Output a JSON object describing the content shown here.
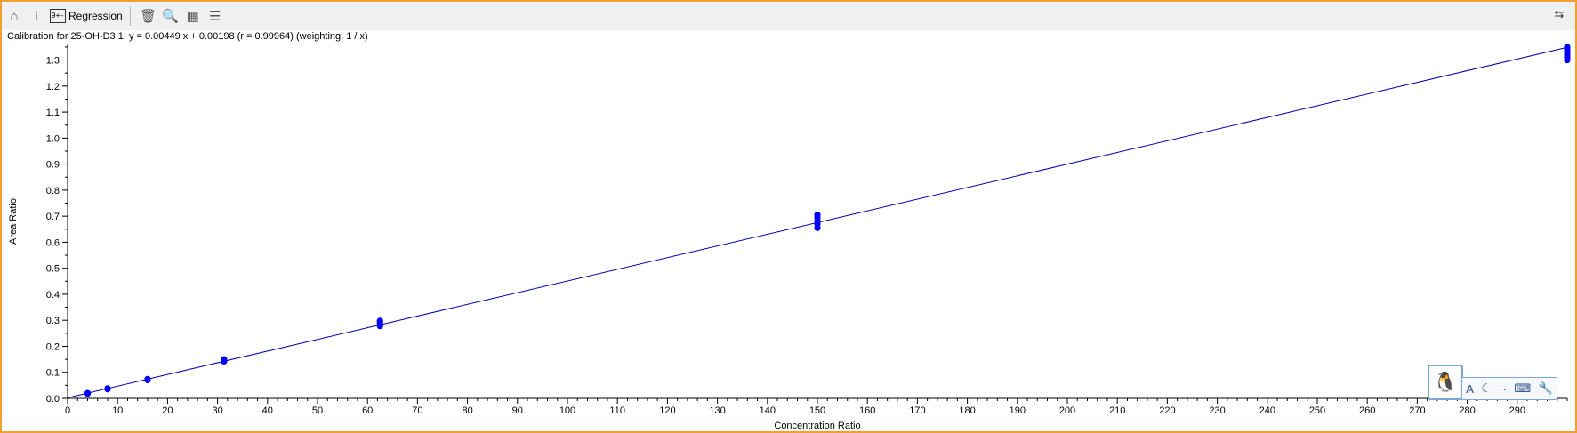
{
  "window": {
    "toolbar": {
      "home_icon": "home-icon",
      "pin_icon": "pin-icon",
      "regression_label": "Regression",
      "regression_glyph": "9+-",
      "delete_icon": "trash-icon",
      "zoom_icon": "magnifier-icon",
      "table_icon": "table-icon",
      "list_icon": "list-icon",
      "dock_icon": "dock-icon"
    }
  },
  "ime": {
    "avatar_icon": "penguin-icon",
    "font_label": "A",
    "moon_icon": "moon-icon",
    "dots_label": "··",
    "keyboard_icon": "keyboard-icon",
    "wrench_icon": "wrench-icon"
  },
  "chart_data": {
    "type": "scatter",
    "title": "Calibration for 25-OH-D3 1: y = 0.00449 x + 0.00198 (r = 0.99964)  (weighting: 1 / x)",
    "xlabel": "Concentration Ratio",
    "ylabel": "Area Ratio",
    "xlim": [
      0,
      300
    ],
    "ylim": [
      0,
      1.36
    ],
    "x_ticks": [
      0,
      10,
      20,
      30,
      40,
      50,
      60,
      70,
      80,
      90,
      100,
      110,
      120,
      130,
      140,
      150,
      160,
      170,
      180,
      190,
      200,
      210,
      220,
      230,
      240,
      250,
      260,
      270,
      280,
      290
    ],
    "y_ticks": [
      0.0,
      0.1,
      0.2,
      0.3,
      0.4,
      0.5,
      0.6,
      0.7,
      0.8,
      0.9,
      1.0,
      1.1,
      1.2,
      1.3
    ],
    "grid": false,
    "colors": {
      "points": "#0000ff",
      "line": "#0000aa",
      "frame": "#f0a030"
    },
    "regression": {
      "slope": 0.00449,
      "intercept": 0.00198,
      "x_range": [
        0,
        300
      ]
    },
    "points": [
      {
        "x": 4,
        "y": 0.018
      },
      {
        "x": 4,
        "y": 0.02
      },
      {
        "x": 8,
        "y": 0.035
      },
      {
        "x": 8,
        "y": 0.038
      },
      {
        "x": 16,
        "y": 0.07
      },
      {
        "x": 16,
        "y": 0.074
      },
      {
        "x": 31.3,
        "y": 0.142
      },
      {
        "x": 31.3,
        "y": 0.146
      },
      {
        "x": 31.3,
        "y": 0.15
      },
      {
        "x": 62.5,
        "y": 0.278
      },
      {
        "x": 62.5,
        "y": 0.285
      },
      {
        "x": 62.5,
        "y": 0.292
      },
      {
        "x": 62.5,
        "y": 0.298
      },
      {
        "x": 150,
        "y": 0.655
      },
      {
        "x": 150,
        "y": 0.67
      },
      {
        "x": 150,
        "y": 0.682
      },
      {
        "x": 150,
        "y": 0.695
      },
      {
        "x": 150,
        "y": 0.705
      },
      {
        "x": 300,
        "y": 1.3
      },
      {
        "x": 300,
        "y": 1.31
      },
      {
        "x": 300,
        "y": 1.32
      },
      {
        "x": 300,
        "y": 1.33
      },
      {
        "x": 300,
        "y": 1.34
      },
      {
        "x": 300,
        "y": 1.35
      }
    ]
  }
}
